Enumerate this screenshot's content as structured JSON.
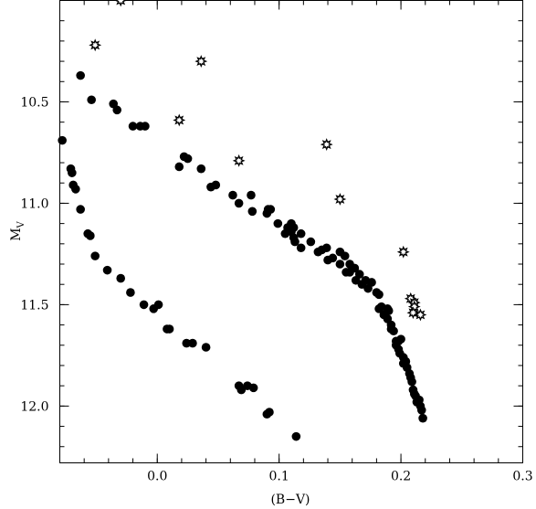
{
  "chart_data": {
    "type": "scatter",
    "xlabel": "(B−V)",
    "ylabel_main": "M",
    "ylabel_sub": "V",
    "xlim": [
      -0.08,
      0.3
    ],
    "ylim": [
      12.28,
      10.0
    ],
    "x_ticks": [
      0.0,
      0.1,
      0.2,
      0.3
    ],
    "x_tick_labels": [
      "0.0",
      "0.1",
      "0.2",
      "0.3"
    ],
    "y_ticks": [
      10.5,
      11.0,
      11.5,
      12.0
    ],
    "y_tick_labels": [
      "10.5",
      "11.0",
      "11.5",
      "12.0"
    ],
    "x_minor_step": 0.02,
    "y_minor_step": 0.1,
    "grid": false,
    "series": [
      {
        "marker": "filled-circle",
        "color": "#000000",
        "points": [
          [
            -0.078,
            10.69
          ],
          [
            -0.071,
            10.83
          ],
          [
            -0.07,
            10.85
          ],
          [
            -0.069,
            10.91
          ],
          [
            -0.067,
            10.93
          ],
          [
            -0.063,
            11.03
          ],
          [
            -0.057,
            11.15
          ],
          [
            -0.055,
            11.16
          ],
          [
            -0.051,
            11.26
          ],
          [
            -0.041,
            11.33
          ],
          [
            -0.03,
            11.37
          ],
          [
            -0.022,
            11.44
          ],
          [
            -0.011,
            11.5
          ],
          [
            -0.003,
            11.52
          ],
          [
            0.001,
            11.5
          ],
          [
            0.008,
            11.62
          ],
          [
            0.01,
            11.62
          ],
          [
            0.024,
            11.69
          ],
          [
            0.029,
            11.69
          ],
          [
            0.04,
            11.71
          ],
          [
            0.067,
            11.9
          ],
          [
            0.069,
            11.92
          ],
          [
            0.074,
            11.9
          ],
          [
            0.079,
            11.91
          ],
          [
            0.09,
            12.04
          ],
          [
            0.092,
            12.03
          ],
          [
            0.114,
            12.15
          ],
          [
            -0.063,
            10.37
          ],
          [
            -0.054,
            10.49
          ],
          [
            -0.036,
            10.51
          ],
          [
            -0.033,
            10.54
          ],
          [
            -0.02,
            10.62
          ],
          [
            -0.014,
            10.62
          ],
          [
            -0.01,
            10.62
          ],
          [
            0.018,
            10.82
          ],
          [
            0.022,
            10.77
          ],
          [
            0.025,
            10.78
          ],
          [
            0.036,
            10.83
          ],
          [
            0.044,
            10.92
          ],
          [
            0.048,
            10.91
          ],
          [
            0.062,
            10.96
          ],
          [
            0.067,
            11.0
          ],
          [
            0.077,
            10.96
          ],
          [
            0.078,
            11.04
          ],
          [
            0.09,
            11.05
          ],
          [
            0.091,
            11.03
          ],
          [
            0.093,
            11.03
          ],
          [
            0.099,
            11.1
          ],
          [
            0.105,
            11.15
          ],
          [
            0.107,
            11.12
          ],
          [
            0.11,
            11.1
          ],
          [
            0.11,
            11.14
          ],
          [
            0.112,
            11.12
          ],
          [
            0.112,
            11.17
          ],
          [
            0.113,
            11.19
          ],
          [
            0.118,
            11.15
          ],
          [
            0.118,
            11.22
          ],
          [
            0.126,
            11.19
          ],
          [
            0.132,
            11.24
          ],
          [
            0.135,
            11.23
          ],
          [
            0.139,
            11.22
          ],
          [
            0.14,
            11.28
          ],
          [
            0.144,
            11.27
          ],
          [
            0.15,
            11.24
          ],
          [
            0.15,
            11.3
          ],
          [
            0.154,
            11.26
          ],
          [
            0.155,
            11.34
          ],
          [
            0.158,
            11.3
          ],
          [
            0.158,
            11.34
          ],
          [
            0.162,
            11.32
          ],
          [
            0.163,
            11.38
          ],
          [
            0.166,
            11.35
          ],
          [
            0.168,
            11.4
          ],
          [
            0.171,
            11.38
          ],
          [
            0.173,
            11.42
          ],
          [
            0.176,
            11.39
          ],
          [
            0.18,
            11.44
          ],
          [
            0.182,
            11.45
          ],
          [
            0.182,
            11.52
          ],
          [
            0.184,
            11.51
          ],
          [
            0.186,
            11.55
          ],
          [
            0.189,
            11.52
          ],
          [
            0.189,
            11.57
          ],
          [
            0.19,
            11.53
          ],
          [
            0.192,
            11.6
          ],
          [
            0.192,
            11.62
          ],
          [
            0.194,
            11.63
          ],
          [
            0.196,
            11.68
          ],
          [
            0.196,
            11.7
          ],
          [
            0.198,
            11.68
          ],
          [
            0.198,
            11.72
          ],
          [
            0.199,
            11.74
          ],
          [
            0.2,
            11.67
          ],
          [
            0.202,
            11.76
          ],
          [
            0.202,
            11.79
          ],
          [
            0.204,
            11.78
          ],
          [
            0.205,
            11.81
          ],
          [
            0.207,
            11.84
          ],
          [
            0.208,
            11.86
          ],
          [
            0.209,
            11.88
          ],
          [
            0.21,
            11.92
          ],
          [
            0.211,
            11.94
          ],
          [
            0.212,
            11.95
          ],
          [
            0.213,
            11.98
          ],
          [
            0.215,
            11.97
          ],
          [
            0.216,
            12.0
          ],
          [
            0.217,
            12.02
          ],
          [
            0.218,
            12.06
          ]
        ]
      },
      {
        "marker": "open-star",
        "color": "#000000",
        "points": [
          [
            -0.03,
            10.0
          ],
          [
            -0.051,
            10.22
          ],
          [
            0.036,
            10.3
          ],
          [
            0.018,
            10.59
          ],
          [
            0.067,
            10.79
          ],
          [
            0.139,
            10.71
          ],
          [
            0.15,
            10.98
          ],
          [
            0.202,
            11.24
          ],
          [
            0.208,
            11.47
          ],
          [
            0.211,
            11.49
          ],
          [
            0.211,
            11.51
          ],
          [
            0.21,
            11.54
          ],
          [
            0.216,
            11.55
          ]
        ]
      }
    ]
  }
}
